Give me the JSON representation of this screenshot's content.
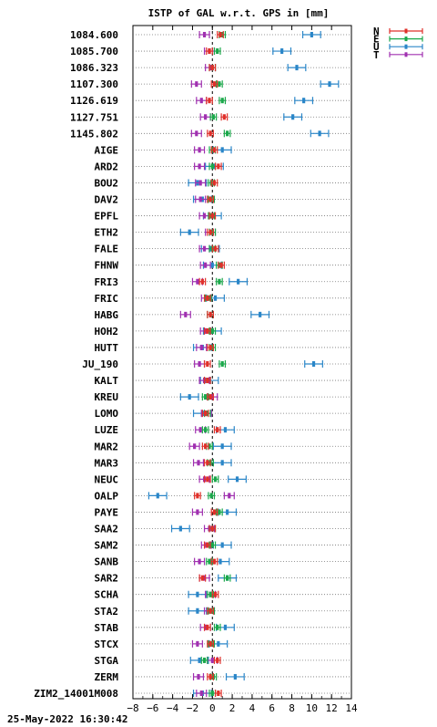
{
  "chart_data": {
    "type": "errorbar",
    "title": "ISTP of GAL w.r.t. GPS in [mm]",
    "xlim": [
      -8,
      14
    ],
    "xticks": [
      -8,
      -6,
      -4,
      -2,
      0,
      2,
      4,
      6,
      8,
      10,
      12,
      14
    ],
    "grid": "horizontal dotted",
    "legend_position": "top-right",
    "series": [
      {
        "name": "N",
        "color": "#e0302a"
      },
      {
        "name": "E",
        "color": "#1aa84a"
      },
      {
        "name": "U",
        "color": "#2a86c8"
      },
      {
        "name": "T",
        "color": "#a030b0"
      }
    ],
    "categories": [
      "1084.600",
      "1085.700",
      "1086.323",
      "1107.300",
      "1126.619",
      "1127.751",
      "1145.802",
      "AIGE",
      "ARD2",
      "BOU2",
      "DAV2",
      "EPFL",
      "ETH2",
      "FALE",
      "FHNW",
      "FRI3",
      "FRIC",
      "HABG",
      "HOH2",
      "HUTT",
      "JU_190",
      "KALT",
      "KREU",
      "LOMO",
      "LUZE",
      "MAR2",
      "MAR3",
      "NEUC",
      "OALP",
      "PAYE",
      "SAA2",
      "SAM2",
      "SANB",
      "SAR2",
      "SCHA",
      "STA2",
      "STAB",
      "STCX",
      "STGA",
      "ZERM",
      "ZIM2_14001M008"
    ],
    "values": {
      "N": [
        0.8,
        -0.3,
        0.0,
        0.2,
        -0.3,
        1.2,
        -0.2,
        0.2,
        0.6,
        0.2,
        -0.2,
        0.0,
        -0.2,
        0.3,
        0.9,
        -1.0,
        -0.5,
        -0.2,
        -0.5,
        -0.2,
        -0.5,
        -0.5,
        -0.2,
        -0.7,
        0.5,
        -0.7,
        -0.5,
        -0.5,
        -1.5,
        0.2,
        0.0,
        -0.5,
        0.2,
        -1.0,
        0.3,
        -0.2,
        -0.5,
        -0.2,
        0.5,
        -0.2,
        0.6
      ],
      "E": [
        1.0,
        0.5,
        0.0,
        0.7,
        1.0,
        0.1,
        1.5,
        0.0,
        0.0,
        -0.1,
        -0.1,
        -0.1,
        0.0,
        0.0,
        0.7,
        0.7,
        -0.4,
        -0.2,
        0.0,
        0.0,
        1.0,
        -0.5,
        -0.7,
        -0.5,
        -0.7,
        -0.3,
        -0.2,
        0.3,
        -0.1,
        0.7,
        0.0,
        0.0,
        -0.3,
        1.5,
        -0.2,
        -0.1,
        0.5,
        -0.1,
        -0.8,
        0.1,
        0.0
      ],
      "U": [
        10.0,
        7.0,
        8.5,
        11.8,
        9.2,
        8.1,
        10.8,
        1.0,
        0.2,
        -1.5,
        -1.0,
        0.0,
        -2.3,
        -0.2,
        0.0,
        2.6,
        0.3,
        4.8,
        0.0,
        -1.0,
        10.2,
        -0.3,
        -2.3,
        -1.0,
        1.3,
        1.0,
        1.0,
        2.5,
        -5.5,
        1.5,
        -3.2,
        1.0,
        0.8,
        1.5,
        -1.5,
        -1.5,
        1.3,
        0.6,
        -1.3,
        2.3,
        -1.0
      ],
      "T": [
        -0.8,
        -0.3,
        -0.2,
        -1.6,
        -1.1,
        -0.7,
        -1.6,
        -1.3,
        -1.3,
        -1.2,
        -1.2,
        -0.8,
        -0.2,
        -0.8,
        -0.7,
        -1.5,
        -0.6,
        -2.7,
        -0.7,
        -1.1,
        -1.3,
        -0.8,
        0.0,
        -0.6,
        -1.2,
        -1.8,
        -1.4,
        -0.8,
        1.7,
        -1.5,
        -0.3,
        -0.6,
        -1.3,
        -0.8,
        -0.2,
        -0.3,
        -0.7,
        -1.5,
        0.0,
        -1.4,
        -1.1
      ]
    },
    "error": {
      "N": 0.3,
      "E": 0.3,
      "U": 0.9,
      "T": 0.5
    }
  },
  "legend_labels": [
    "N",
    "E",
    "U",
    "T"
  ],
  "timestamp": "25-May-2022 16:30:42"
}
